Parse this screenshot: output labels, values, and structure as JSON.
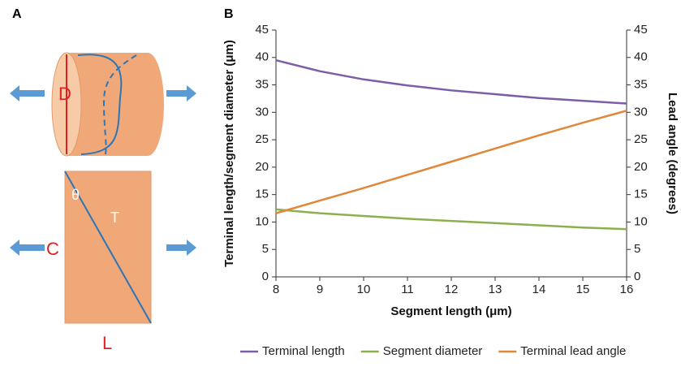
{
  "panel_labels": [
    "A",
    "B"
  ],
  "diagram": {
    "diameter": "D",
    "angle": "θ",
    "terminal": "T",
    "circumference": "C",
    "length": "L"
  },
  "chart_data": {
    "type": "line",
    "xlabel": "Segment length (μm)",
    "ylabel": "Terminal length/segment diameter (μm)",
    "y2label": "Lead angle (degrees)",
    "x": [
      8,
      9,
      10,
      11,
      12,
      13,
      14,
      15,
      16
    ],
    "xlim": [
      8,
      16
    ],
    "xticks": [
      8,
      9,
      10,
      11,
      12,
      13,
      14,
      15,
      16
    ],
    "ylim": [
      0,
      45
    ],
    "yticks": [
      0,
      5,
      10,
      15,
      20,
      25,
      30,
      35,
      40,
      45
    ],
    "y2lim": [
      0,
      45
    ],
    "y2ticks": [
      0,
      5,
      10,
      15,
      20,
      25,
      30,
      35,
      40,
      45
    ],
    "legend": "bottom",
    "series": [
      {
        "name": "Terminal length",
        "color": "#7b5ea7",
        "values": [
          39.5,
          37.5,
          36,
          34.9,
          34,
          33.3,
          32.6,
          32.1,
          31.6
        ]
      },
      {
        "name": "Segment diameter",
        "color": "#8db04e",
        "values": [
          12.3,
          11.6,
          11.1,
          10.6,
          10.2,
          9.8,
          9.4,
          9.0,
          8.7
        ]
      },
      {
        "name": "Terminal lead angle",
        "color": "#e0873a",
        "axis": "y2",
        "values": [
          11.6,
          13.9,
          16.2,
          18.6,
          21,
          23.4,
          25.8,
          28.1,
          30.3
        ]
      }
    ]
  }
}
